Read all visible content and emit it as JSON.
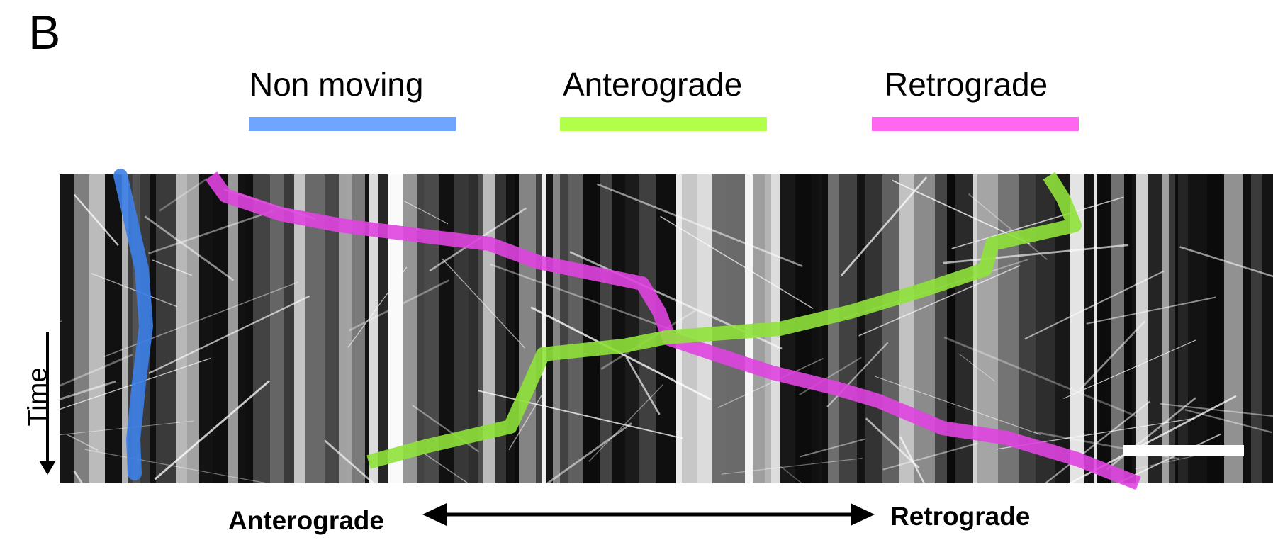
{
  "panel_label": "B",
  "legend": [
    {
      "label": "Non moving",
      "color": "#6ea6ff"
    },
    {
      "label": "Anterograde",
      "color": "#b2ff4a"
    },
    {
      "label": "Retrograde",
      "color": "#ff66f2"
    }
  ],
  "axes": {
    "time_label": "Time",
    "direction_left": "Anterograde",
    "direction_right": "Retrograde"
  },
  "trace_colors": {
    "non_moving": "#3d7fe8",
    "anterograde": "#8fe23a",
    "retrograde": "#e044e0"
  }
}
